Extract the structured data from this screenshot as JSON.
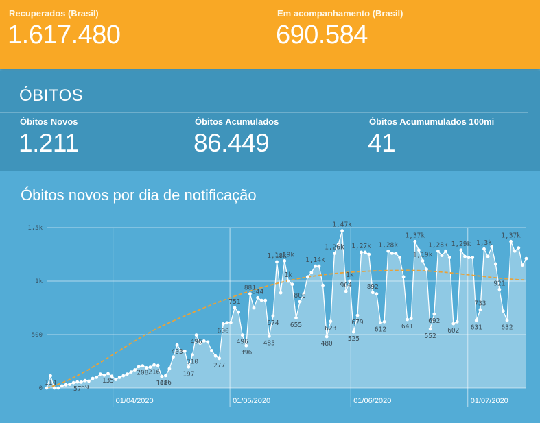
{
  "header": {
    "recuperados": {
      "label": "Recuperados (Brasil)",
      "value": "1.617.480"
    },
    "acompanhamento": {
      "label": "Em acompanhamento (Brasil)",
      "value": "690.584"
    }
  },
  "obitos": {
    "title": "ÓBITOS",
    "novos": {
      "label": "Óbitos Novos",
      "value": "1.211"
    },
    "acumulados": {
      "label": "Óbitos Acumulados",
      "value": "86.449"
    },
    "acumulados_100mi": {
      "label": "Óbitos Acumumulados 100mi",
      "value": "41"
    }
  },
  "chart": {
    "title": "Óbitos novos por dia de notificação"
  },
  "colors": {
    "orange": "#f9a825",
    "band": "#3f94bb",
    "panel": "#53acd6",
    "trend": "#e8a23a"
  },
  "chart_data": {
    "type": "area",
    "title": "Óbitos novos por dia de notificação",
    "y_ticks": [
      "0",
      "500",
      "1k",
      "1,5k"
    ],
    "ylim": [
      0,
      1500
    ],
    "x_ticks": [
      {
        "label": "01/04/2020",
        "day": 17
      },
      {
        "label": "01/05/2020",
        "day": 47
      },
      {
        "label": "01/06/2020",
        "day": 78
      },
      {
        "label": "01/07/2020",
        "day": 108
      }
    ],
    "x_range": [
      0,
      114
    ],
    "series": [
      {
        "values": [
          0,
          114,
          0,
          0,
          20,
          30,
          35,
          50,
          57,
          55,
          69,
          65,
          90,
          100,
          130,
          120,
          135,
          110,
          80,
          100,
          115,
          130,
          150,
          170,
          200,
          208,
          190,
          195,
          216,
          210,
          108,
          116,
          180,
          290,
          403,
          350,
          344,
          197,
          310,
          496,
          420,
          440,
          430,
          350,
          300,
          277,
          600,
          610,
          613,
          751,
          710,
          496,
          396,
          881,
          750,
          844,
          820,
          820,
          485,
          674,
          1180,
          890,
          1190,
          1000,
          970,
          655,
          808,
          880,
          1040,
          1080,
          1140,
          1140,
          960,
          480,
          623,
          1260,
          1340,
          1470,
          904,
          1000,
          525,
          679,
          1270,
          1270,
          1250,
          892,
          880,
          612,
          620,
          1280,
          1260,
          1260,
          1220,
          1040,
          641,
          650,
          1370,
          1290,
          1190,
          1110,
          552,
          692,
          1280,
          1240,
          1280,
          1220,
          602,
          620,
          1290,
          1230,
          1220,
          1220,
          631,
          733,
          1300,
          1230,
          1320,
          1160,
          921,
          720,
          632,
          1370,
          1280,
          1310,
          1150,
          1211
        ]
      },
      {
        "name": "trend",
        "values": [
          0,
          600,
          1000,
          1100,
          1010
        ]
      }
    ],
    "data_labels": [
      {
        "day": 1,
        "text": "114"
      },
      {
        "day": 8,
        "text": "57"
      },
      {
        "day": 10,
        "text": "69"
      },
      {
        "day": 16,
        "text": "135"
      },
      {
        "day": 25,
        "text": "208"
      },
      {
        "day": 30,
        "text": "108"
      },
      {
        "day": 28,
        "text": "216"
      },
      {
        "day": 34,
        "text": "403"
      },
      {
        "day": 31,
        "text": "116"
      },
      {
        "day": 37,
        "text": "197"
      },
      {
        "day": 39,
        "text": "496"
      },
      {
        "day": 38,
        "text": "310"
      },
      {
        "day": 45,
        "text": "277"
      },
      {
        "day": 46,
        "text": "600"
      },
      {
        "day": 49,
        "text": "751"
      },
      {
        "day": 51,
        "text": "496"
      },
      {
        "day": 52,
        "text": "396"
      },
      {
        "day": 53,
        "text": "881"
      },
      {
        "day": 55,
        "text": "844"
      },
      {
        "day": 58,
        "text": "485"
      },
      {
        "day": 60,
        "text": "1,18k"
      },
      {
        "day": 59,
        "text": "674"
      },
      {
        "day": 62,
        "text": "1,19k"
      },
      {
        "day": 63,
        "text": "1k"
      },
      {
        "day": 65,
        "text": "655"
      },
      {
        "day": 66,
        "text": "808"
      },
      {
        "day": 70,
        "text": "1,14k"
      },
      {
        "day": 73,
        "text": "480"
      },
      {
        "day": 74,
        "text": "623"
      },
      {
        "day": 75,
        "text": "1,26k"
      },
      {
        "day": 77,
        "text": "1,47k"
      },
      {
        "day": 78,
        "text": "904"
      },
      {
        "day": 79,
        "text": "1k"
      },
      {
        "day": 80,
        "text": "525"
      },
      {
        "day": 81,
        "text": "679"
      },
      {
        "day": 82,
        "text": "1,27k"
      },
      {
        "day": 85,
        "text": "892"
      },
      {
        "day": 87,
        "text": "612"
      },
      {
        "day": 89,
        "text": "1,28k"
      },
      {
        "day": 94,
        "text": "641"
      },
      {
        "day": 96,
        "text": "1,37k"
      },
      {
        "day": 98,
        "text": "1,19k"
      },
      {
        "day": 100,
        "text": "552"
      },
      {
        "day": 101,
        "text": "692"
      },
      {
        "day": 102,
        "text": "1,28k"
      },
      {
        "day": 106,
        "text": "602"
      },
      {
        "day": 108,
        "text": "1,29k"
      },
      {
        "day": 112,
        "text": "631"
      },
      {
        "day": 114,
        "text": "1,3k"
      },
      {
        "day": 113,
        "text": "733"
      },
      {
        "day": 118,
        "text": "921"
      },
      {
        "day": 120,
        "text": "632"
      },
      {
        "day": 121,
        "text": "1,37k"
      }
    ]
  }
}
